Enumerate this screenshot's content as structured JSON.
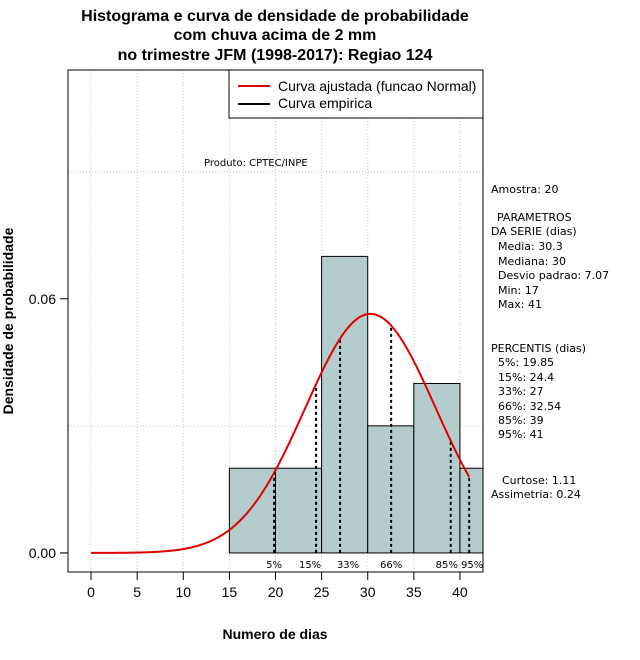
{
  "chart_data": {
    "type": "bar",
    "title_lines": [
      "Histograma e curva de densidade de probabilidade",
      "com chuva acima de 2 mm",
      "no trimestre JFM (1998-2017): Regiao 124"
    ],
    "xlabel": "Numero de dias",
    "ylabel": "Densidade de probabilidade",
    "xlim": [
      -2.5,
      42.5
    ],
    "ylim": [
      -0.0045,
      0.114
    ],
    "xticks": [
      0,
      5,
      10,
      15,
      20,
      25,
      30,
      35,
      40
    ],
    "xtick_labels": [
      "0",
      "5",
      "10",
      "15",
      "20",
      "25",
      "30",
      "35",
      "40"
    ],
    "yticks": [
      0.0,
      0.06
    ],
    "ytick_labels": [
      "0.00",
      "0.06"
    ],
    "bins": [
      {
        "from": 15,
        "to": 20,
        "density": 0.02
      },
      {
        "from": 20,
        "to": 25,
        "density": 0.02
      },
      {
        "from": 25,
        "to": 30,
        "density": 0.07
      },
      {
        "from": 30,
        "to": 35,
        "density": 0.03
      },
      {
        "from": 35,
        "to": 40,
        "density": 0.04
      },
      {
        "from": 40,
        "to": 45,
        "density": 0.02
      }
    ],
    "bar_color": "#b4cccc",
    "grid": true,
    "normal_curve": {
      "mean": 30.3,
      "sd": 7.07,
      "x_from": 0,
      "x_to": 41,
      "color": "#e00000"
    },
    "percentiles": [
      {
        "label": "5%",
        "value": 19.85
      },
      {
        "label": "15%",
        "value": 24.4
      },
      {
        "label": "33%",
        "value": 27
      },
      {
        "label": "66%",
        "value": 32.54
      },
      {
        "label": "85%",
        "value": 39
      },
      {
        "label": "95%",
        "value": 41
      }
    ],
    "legend": {
      "position": "top-right",
      "entries": [
        {
          "label": "Curva ajustada (funcao Normal)",
          "color": "#e00000"
        },
        {
          "label": "Curva empirica",
          "color": "#000000"
        }
      ]
    },
    "product_note": "Produto: CPTEC/INPE",
    "side_info": [
      "Amostra: 20",
      "PARAMETROS",
      "DA SERIE (dias)",
      "Media: 30.3",
      "Mediana: 30",
      "Desvio padrao: 7.07",
      "Min: 17",
      "Max: 41",
      "PERCENTIS (dias)",
      "5%: 19.85",
      "15%: 24.4",
      "33%: 27",
      "66%: 32.54",
      "85%: 39",
      "95%: 41",
      "Curtose: 1.11",
      "Assimetria: 0.24"
    ]
  }
}
